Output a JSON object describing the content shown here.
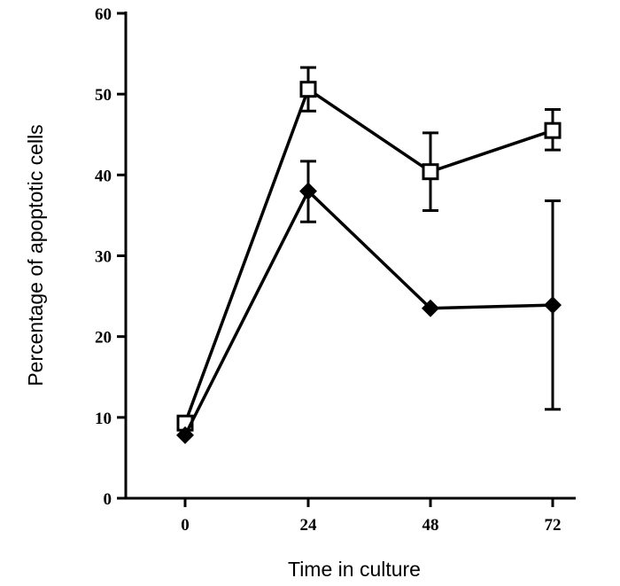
{
  "chart_data": {
    "type": "line",
    "title": "",
    "xlabel": "Time in culture",
    "ylabel": "Percentage of apoptotic cells",
    "x": [
      0,
      24,
      48,
      72
    ],
    "x_ticks": [
      "0",
      "24",
      "48",
      "72"
    ],
    "ylim": [
      0,
      60
    ],
    "y_ticks": [
      "0",
      "10",
      "20",
      "30",
      "40",
      "50",
      "60"
    ],
    "grid": false,
    "series": [
      {
        "marker": "open-square",
        "color": "#000000",
        "values": [
          9.3,
          50.6,
          40.4,
          45.5
        ],
        "error_upper": [
          null,
          53.3,
          45.2,
          48.1
        ],
        "error_lower": [
          null,
          47.9,
          35.6,
          43.1
        ]
      },
      {
        "marker": "filled-diamond",
        "color": "#000000",
        "values": [
          7.8,
          38.0,
          23.5,
          23.9
        ],
        "error_upper": [
          null,
          41.7,
          null,
          36.8
        ],
        "error_lower": [
          null,
          34.2,
          null,
          11.0
        ]
      }
    ]
  }
}
